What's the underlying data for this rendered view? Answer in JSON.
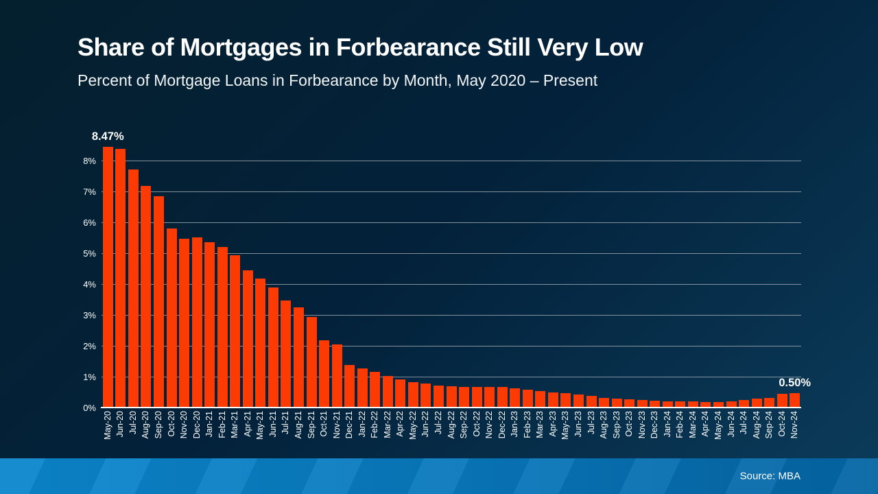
{
  "slide": {
    "title": "Share of Mortgages in Forbearance Still Very Low",
    "subtitle": "Percent of Mortgage Loans in Forbearance by Month, May 2020 – Present",
    "source": "Source: MBA"
  },
  "colors": {
    "bar": "#fc3a04",
    "background_top": "#04202e",
    "background_bottom": "#0b3c5b",
    "footer_left": "#0b87cd",
    "footer_right": "#0465a3",
    "gridline": "#adb6bc",
    "text": "#ffffff"
  },
  "chart_data": {
    "type": "bar",
    "title": "Share of Mortgages in Forbearance Still Very Low",
    "subtitle": "Percent of Mortgage Loans in Forbearance by Month, May 2020 – Present",
    "xlabel": "",
    "ylabel": "",
    "ylim": [
      0,
      8.5
    ],
    "grid": true,
    "legend": "none",
    "yticks": [
      "0%",
      "1%",
      "2%",
      "3%",
      "4%",
      "5%",
      "6%",
      "7%",
      "8%"
    ],
    "categories": [
      "May-20",
      "Jun-20",
      "Jul-20",
      "Aug-20",
      "Sep-20",
      "Oct-20",
      "Nov-20",
      "Dec-20",
      "Jan-21",
      "Feb-21",
      "Mar-21",
      "Apr-21",
      "May-21",
      "Jun-21",
      "Jul-21",
      "Aug-21",
      "Sep-21",
      "Oct-21",
      "Nov-21",
      "Dec-21",
      "Jan-22",
      "Feb-22",
      "Mar-22",
      "Apr-22",
      "May-22",
      "Jun-22",
      "Jul-22",
      "Aug-22",
      "Sep-22",
      "Oct-22",
      "Nov-22",
      "Dec-22",
      "Jan-23",
      "Feb-23",
      "Mar-23",
      "Apr-23",
      "May-23",
      "Jun-23",
      "Jul-23",
      "Aug-23",
      "Sep-23",
      "Oct-23",
      "Nov-23",
      "Dec-23",
      "Jan-24",
      "Feb-24",
      "Mar-24",
      "Apr-24",
      "May-24",
      "Jun-24",
      "Jul-24",
      "Aug-24",
      "Sep-24",
      "Oct-24",
      "Nov-24"
    ],
    "values": [
      8.47,
      8.39,
      7.74,
      7.21,
      6.87,
      5.83,
      5.48,
      5.53,
      5.38,
      5.22,
      4.96,
      4.47,
      4.2,
      3.91,
      3.48,
      3.26,
      2.96,
      2.21,
      2.06,
      1.41,
      1.3,
      1.18,
      1.05,
      0.94,
      0.85,
      0.81,
      0.74,
      0.72,
      0.69,
      0.7,
      0.7,
      0.7,
      0.64,
      0.6,
      0.55,
      0.51,
      0.49,
      0.44,
      0.39,
      0.33,
      0.31,
      0.29,
      0.26,
      0.24,
      0.22,
      0.22,
      0.22,
      0.21,
      0.21,
      0.23,
      0.27,
      0.31,
      0.34,
      0.47,
      0.5
    ],
    "annotations": [
      {
        "index": 0,
        "label": "8.47%"
      },
      {
        "index": 54,
        "label": "0.50%"
      }
    ]
  }
}
